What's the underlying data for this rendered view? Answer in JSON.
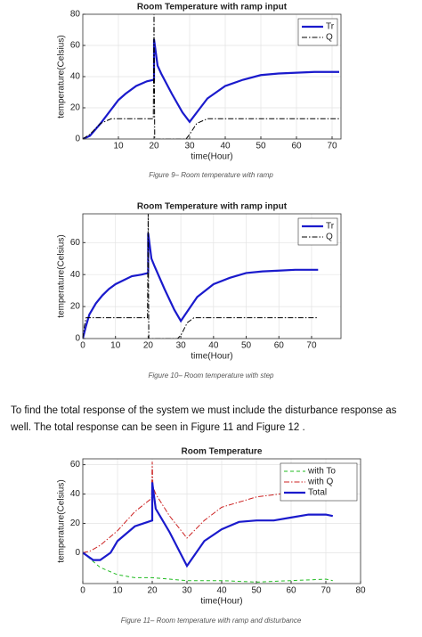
{
  "chart_data": [
    {
      "type": "line",
      "title": "Room Temperature with ramp input",
      "xlabel": "time(Hour)",
      "ylabel": "temperature(Celsius)",
      "xlim": [
        0,
        72.5
      ],
      "ylim": [
        0,
        80
      ],
      "xticks": [
        10,
        20,
        30,
        40,
        50,
        60,
        70
      ],
      "yticks": [
        0,
        20,
        40,
        60,
        80
      ],
      "grid": true,
      "legend": "upper right",
      "series": [
        {
          "name": "Tr",
          "color": "#1a1acc",
          "dash": "solid",
          "x": [
            0,
            2,
            5,
            8,
            10,
            12,
            15,
            18,
            20,
            20,
            21,
            22,
            25,
            28,
            30,
            32,
            35,
            40,
            45,
            50,
            55,
            60,
            65,
            70,
            72
          ],
          "values": [
            0,
            2,
            10,
            19,
            25,
            29,
            34,
            37,
            38,
            64,
            47,
            42,
            29,
            17,
            11,
            17,
            26,
            34,
            38,
            41,
            42,
            42.5,
            43,
            43,
            43
          ]
        },
        {
          "name": "Q",
          "color": "#000000",
          "dash": "dashdot",
          "x": [
            0,
            2,
            5,
            8,
            19.8,
            20,
            20.2,
            29,
            30,
            32,
            35,
            40,
            72
          ],
          "values": [
            0,
            3,
            10,
            13,
            13,
            80,
            0,
            0,
            3,
            10,
            13,
            13,
            13
          ]
        }
      ]
    },
    {
      "type": "line",
      "title": "Room Temperature with ramp input",
      "xlabel": "time(Hour)",
      "ylabel": "temperature(Celsius)",
      "xlim": [
        0,
        79
      ],
      "ylim": [
        0,
        78
      ],
      "xticks": [
        0,
        10,
        20,
        30,
        40,
        50,
        60,
        70
      ],
      "yticks": [
        0,
        20,
        40,
        60
      ],
      "grid": true,
      "legend": "upper right",
      "series": [
        {
          "name": "Tr",
          "color": "#1a1acc",
          "dash": "solid",
          "x": [
            0,
            1,
            2,
            4,
            6,
            8,
            10,
            12,
            15,
            18,
            20,
            20,
            21,
            22,
            25,
            28,
            30,
            32,
            35,
            40,
            45,
            50,
            55,
            60,
            65,
            70,
            72
          ],
          "values": [
            0,
            8,
            15,
            22,
            27,
            31,
            34,
            36,
            39,
            40,
            41,
            66,
            50,
            45,
            31,
            18,
            11,
            17,
            26,
            34,
            38,
            41,
            42,
            42.5,
            43,
            43,
            43
          ]
        },
        {
          "name": "Q",
          "color": "#000000",
          "dash": "dashdot",
          "x": [
            0,
            0.5,
            1,
            19.8,
            20,
            20.2,
            29,
            30,
            32,
            34,
            40,
            72
          ],
          "values": [
            0,
            8,
            13,
            13,
            78,
            0,
            0,
            2,
            10,
            13,
            13,
            13
          ]
        }
      ]
    },
    {
      "type": "line",
      "title": "Room Temperature",
      "xlabel": "time(Hour)",
      "ylabel": "temperature(Celsius)",
      "xlim": [
        0,
        80
      ],
      "ylim": [
        -21,
        64
      ],
      "xticks": [
        0,
        10,
        20,
        30,
        40,
        50,
        60,
        70,
        80
      ],
      "yticks": [
        0,
        20,
        40,
        60
      ],
      "grid": true,
      "legend": "upper right",
      "series": [
        {
          "name": "with To",
          "color": "#22bb22",
          "dash": "dashed",
          "x": [
            0,
            5,
            10,
            15,
            20,
            25,
            30,
            40,
            50,
            60,
            70,
            72
          ],
          "values": [
            0,
            -10,
            -15,
            -17,
            -17,
            -18,
            -19,
            -19,
            -20,
            -19,
            -18,
            -19
          ]
        },
        {
          "name": "with Q",
          "color": "#cc2222",
          "dash": "dashdot",
          "x": [
            0,
            2,
            5,
            10,
            15,
            19.8,
            20,
            20.2,
            21,
            25,
            30,
            35,
            40,
            50,
            60,
            70,
            72
          ],
          "values": [
            0,
            1,
            5,
            15,
            28,
            37,
            62,
            45,
            40,
            25,
            10,
            22,
            31,
            38,
            41,
            43,
            43
          ]
        },
        {
          "name": "Total",
          "color": "#1a1acc",
          "dash": "solid",
          "x": [
            0,
            3,
            5,
            8,
            10,
            15,
            20,
            20,
            21,
            25,
            30,
            35,
            40,
            45,
            50,
            55,
            60,
            65,
            70,
            72
          ],
          "values": [
            0,
            -5,
            -5,
            0,
            8,
            18,
            22,
            48,
            30,
            14,
            -9,
            8,
            16,
            21,
            22,
            22,
            24,
            26,
            26,
            25
          ]
        }
      ]
    }
  ],
  "captions": [
    "Figure 9– Room temperature with ramp",
    "Figure 10– Room temperature with step",
    "Figure 11– Room temperature with ramp and disturbance"
  ],
  "paragraph": [
    "To find the total response of the system we must include the disturbance response as",
    "well. The total response can be seen in Figure 11 and Figure 12 ."
  ]
}
